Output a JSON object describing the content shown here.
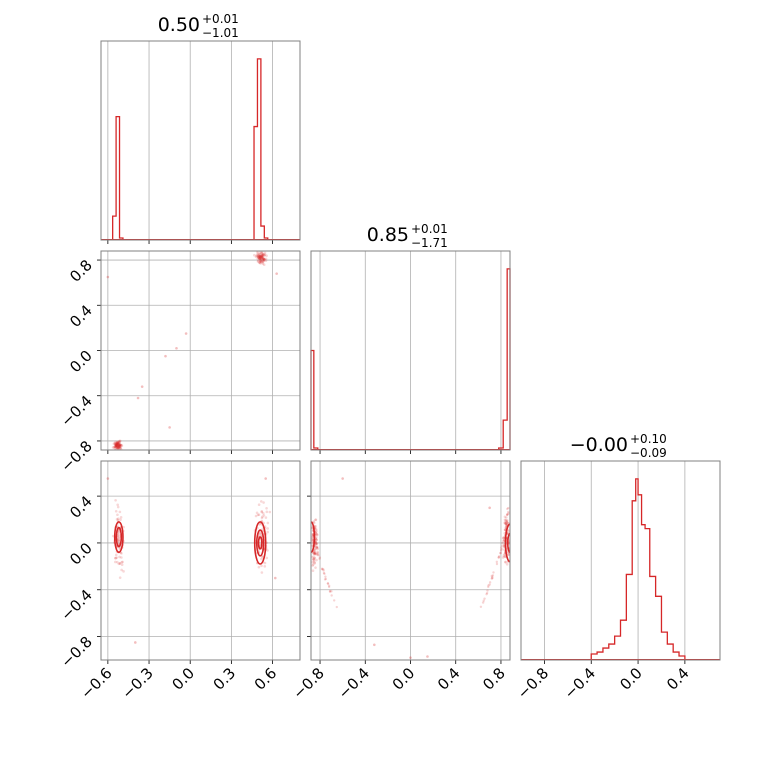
{
  "colors": {
    "series": "#d62728",
    "grid": "#b0b0b0",
    "frame": "#808080"
  },
  "chart_data": [
    {
      "type": "histogram",
      "panel": "x1",
      "title": {
        "value": "0.50",
        "plus": "+0.01",
        "minus": "−1.01"
      },
      "x_ticks": [
        "−0.6",
        "−0.3",
        "0.0",
        "0.3",
        "0.6"
      ],
      "xlim": [
        -0.65,
        0.8
      ],
      "bins": [
        {
          "x0": -0.565,
          "x1": -0.54,
          "h": 0.12
        },
        {
          "x0": -0.54,
          "x1": -0.515,
          "h": 0.62
        },
        {
          "x0": -0.515,
          "x1": -0.49,
          "h": 0.01
        },
        {
          "x0": 0.465,
          "x1": 0.49,
          "h": 0.57
        },
        {
          "x0": 0.49,
          "x1": 0.515,
          "h": 0.91
        },
        {
          "x0": 0.515,
          "x1": 0.54,
          "h": 0.07
        },
        {
          "x0": 0.54,
          "x1": 0.565,
          "h": 0.01
        }
      ]
    },
    {
      "type": "histogram",
      "panel": "x2",
      "title": {
        "value": "0.85",
        "plus": "+0.01",
        "minus": "−1.71"
      },
      "xlim": [
        -0.88,
        0.88
      ],
      "bins": [
        {
          "x0": -0.88,
          "x1": -0.855,
          "h": 0.5
        },
        {
          "x0": -0.855,
          "x1": -0.82,
          "h": 0.01
        },
        {
          "x0": 0.78,
          "x1": 0.82,
          "h": 0.01
        },
        {
          "x0": 0.82,
          "x1": 0.855,
          "h": 0.15
        },
        {
          "x0": 0.855,
          "x1": 0.88,
          "h": 0.91
        }
      ]
    },
    {
      "type": "histogram",
      "panel": "x3",
      "title": {
        "value": "−0.00",
        "plus": "+0.10",
        "minus": "−0.09"
      },
      "x_ticks": [
        "−0.8",
        "−0.4",
        "0.0",
        "0.4"
      ],
      "xlim": [
        -1.0,
        0.7
      ],
      "bins": [
        {
          "x0": -0.4,
          "x1": -0.35,
          "h": 0.03
        },
        {
          "x0": -0.35,
          "x1": -0.3,
          "h": 0.04
        },
        {
          "x0": -0.3,
          "x1": -0.25,
          "h": 0.06
        },
        {
          "x0": -0.25,
          "x1": -0.2,
          "h": 0.08
        },
        {
          "x0": -0.2,
          "x1": -0.15,
          "h": 0.12
        },
        {
          "x0": -0.15,
          "x1": -0.1,
          "h": 0.2
        },
        {
          "x0": -0.1,
          "x1": -0.05,
          "h": 0.43
        },
        {
          "x0": -0.05,
          "x1": -0.02,
          "h": 0.8
        },
        {
          "x0": -0.02,
          "x1": 0.0,
          "h": 0.91
        },
        {
          "x0": 0.0,
          "x1": 0.03,
          "h": 0.83
        },
        {
          "x0": 0.03,
          "x1": 0.06,
          "h": 0.68
        },
        {
          "x0": 0.06,
          "x1": 0.1,
          "h": 0.66
        },
        {
          "x0": 0.1,
          "x1": 0.15,
          "h": 0.42
        },
        {
          "x0": 0.15,
          "x1": 0.2,
          "h": 0.32
        },
        {
          "x0": 0.2,
          "x1": 0.25,
          "h": 0.14
        },
        {
          "x0": 0.25,
          "x1": 0.3,
          "h": 0.08
        },
        {
          "x0": 0.3,
          "x1": 0.35,
          "h": 0.04
        },
        {
          "x0": 0.35,
          "x1": 0.4,
          "h": 0.02
        }
      ]
    },
    {
      "type": "scatter",
      "panel": "x1-vs-x2",
      "xlim": [
        -0.65,
        0.8
      ],
      "ylim": [
        -0.88,
        0.88
      ],
      "y_ticks": [
        "−0.8",
        "−0.4",
        "0.0",
        "0.4",
        "0.8"
      ],
      "clusters": [
        {
          "x": [
            0.47,
            0.56
          ],
          "y": [
            0.76,
            0.88
          ]
        },
        {
          "x": [
            -0.56,
            -0.49
          ],
          "y": [
            -0.88,
            -0.8
          ]
        }
      ],
      "outliers": [
        {
          "x": -0.6,
          "y": 0.65
        },
        {
          "x": -0.03,
          "y": 0.15
        },
        {
          "x": -0.18,
          "y": -0.05
        },
        {
          "x": -0.1,
          "y": 0.02
        },
        {
          "x": -0.35,
          "y": -0.32
        },
        {
          "x": -0.38,
          "y": -0.42
        },
        {
          "x": 0.63,
          "y": 0.68
        },
        {
          "x": -0.15,
          "y": -0.68
        }
      ]
    },
    {
      "type": "scatter",
      "panel": "x1-vs-x3",
      "xlim": [
        -0.65,
        0.8
      ],
      "ylim": [
        -1.0,
        0.7
      ],
      "y_ticks": [
        "−0.8",
        "−0.4",
        "0.0",
        "0.4"
      ],
      "clusters": [
        {
          "x": [
            -0.56,
            -0.48
          ],
          "y": [
            -0.3,
            0.35
          ]
        },
        {
          "x": [
            0.46,
            0.58
          ],
          "y": [
            -0.35,
            0.4
          ]
        }
      ],
      "contours": [
        {
          "cx": -0.52,
          "cy": 0.05,
          "rx": 0.03,
          "ry": 0.13
        },
        {
          "cx": -0.52,
          "cy": 0.05,
          "rx": 0.018,
          "ry": 0.08
        },
        {
          "cx": 0.51,
          "cy": 0.0,
          "rx": 0.04,
          "ry": 0.18
        },
        {
          "cx": 0.51,
          "cy": 0.0,
          "rx": 0.025,
          "ry": 0.11
        },
        {
          "cx": 0.51,
          "cy": 0.0,
          "rx": 0.012,
          "ry": 0.05
        }
      ],
      "outliers": [
        {
          "x": -0.6,
          "y": 0.55
        },
        {
          "x": -0.4,
          "y": -0.85
        },
        {
          "x": 0.62,
          "y": -0.3
        },
        {
          "x": 0.55,
          "y": 0.55
        }
      ]
    },
    {
      "type": "scatter",
      "panel": "x2-vs-x3",
      "xlim": [
        -0.88,
        0.88
      ],
      "ylim": [
        -1.0,
        0.7
      ],
      "x_ticks": [
        "−0.8",
        "−0.4",
        "0.0",
        "0.4",
        "0.8"
      ],
      "clusters": [
        {
          "x": [
            -0.88,
            -0.82
          ],
          "y": [
            -0.25,
            0.25
          ]
        },
        {
          "x": [
            0.82,
            0.88
          ],
          "y": [
            -0.25,
            0.3
          ]
        }
      ],
      "contours": [
        {
          "cx": -0.88,
          "cy": 0.05,
          "rx": 0.03,
          "ry": 0.13
        },
        {
          "cx": 0.88,
          "cy": 0.0,
          "rx": 0.04,
          "ry": 0.16
        },
        {
          "cx": 0.88,
          "cy": 0.0,
          "rx": 0.02,
          "ry": 0.08
        }
      ],
      "arcs": [
        {
          "side": "left",
          "x": [
            -0.86,
            -0.65
          ],
          "y": [
            -0.55,
            0.2
          ]
        },
        {
          "side": "right",
          "x": [
            0.62,
            0.86
          ],
          "y": [
            -0.55,
            0.3
          ]
        }
      ],
      "outliers": [
        {
          "x": -0.6,
          "y": 0.55
        },
        {
          "x": -0.32,
          "y": -0.87
        },
        {
          "x": 0.0,
          "y": -0.98
        },
        {
          "x": 0.15,
          "y": -0.97
        },
        {
          "x": 0.7,
          "y": 0.3
        }
      ]
    }
  ]
}
